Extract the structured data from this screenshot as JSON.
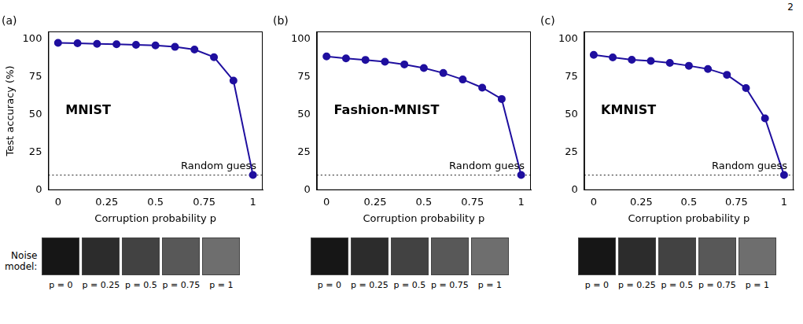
{
  "page_number": "2",
  "noise_model_label": "Noise model:",
  "noise_labels": [
    "p = 0",
    "p = 0.25",
    "p = 0.5",
    "p = 0.75",
    "p = 1"
  ],
  "chart_data": [
    {
      "type": "line",
      "panel": "(a)",
      "title": "MNIST",
      "x_label": "Corruption probability p",
      "y_label": "Test accuracy (%)",
      "x": [
        0,
        0.1,
        0.2,
        0.3,
        0.4,
        0.5,
        0.6,
        0.7,
        0.8,
        0.9,
        1
      ],
      "values": [
        97.5,
        97.2,
        96.8,
        96.5,
        96.2,
        95.8,
        94.8,
        93,
        88,
        72.5,
        10
      ],
      "color": "#1f0f9f",
      "marker": "circle",
      "grid": false,
      "xlim": [
        -0.05,
        1.05
      ],
      "xticks": [
        0,
        0.25,
        0.5,
        0.75,
        1
      ],
      "ylim": [
        0,
        105
      ],
      "yticks": [
        0,
        25,
        50,
        75,
        100
      ],
      "annotations": [
        {
          "text": "Random guess",
          "y": 10,
          "line_style": "dotted"
        }
      ]
    },
    {
      "type": "line",
      "panel": "(b)",
      "title": "Fashion-MNIST",
      "x_label": "Corruption probability p",
      "x": [
        0,
        0.1,
        0.2,
        0.3,
        0.4,
        0.5,
        0.6,
        0.7,
        0.8,
        0.9,
        1
      ],
      "values": [
        88.5,
        87.2,
        86.2,
        85,
        83.2,
        80.8,
        77.5,
        73.2,
        67.8,
        60.3,
        10
      ],
      "color": "#1f0f9f",
      "marker": "circle",
      "grid": false,
      "xlim": [
        -0.05,
        1.05
      ],
      "xticks": [
        0,
        0.25,
        0.5,
        0.75,
        1
      ],
      "ylim": [
        0,
        105
      ],
      "yticks": [
        0,
        25,
        50,
        75,
        100
      ],
      "annotations": [
        {
          "text": "Random guess",
          "y": 10,
          "line_style": "dotted"
        }
      ]
    },
    {
      "type": "line",
      "panel": "(c)",
      "title": "KMNIST",
      "x_label": "Corruption probability p",
      "x": [
        0,
        0.1,
        0.2,
        0.3,
        0.4,
        0.5,
        0.6,
        0.7,
        0.8,
        0.9,
        1
      ],
      "values": [
        89.5,
        87.8,
        86.3,
        85.5,
        84.2,
        82.3,
        80.2,
        76.3,
        67.5,
        47.5,
        10
      ],
      "color": "#1f0f9f",
      "marker": "circle",
      "grid": false,
      "xlim": [
        -0.05,
        1.05
      ],
      "xticks": [
        0,
        0.25,
        0.5,
        0.75,
        1
      ],
      "ylim": [
        0,
        105
      ],
      "yticks": [
        0,
        25,
        50,
        75,
        100
      ],
      "annotations": [
        {
          "text": "Random guess",
          "y": 10,
          "line_style": "dotted"
        }
      ]
    }
  ]
}
